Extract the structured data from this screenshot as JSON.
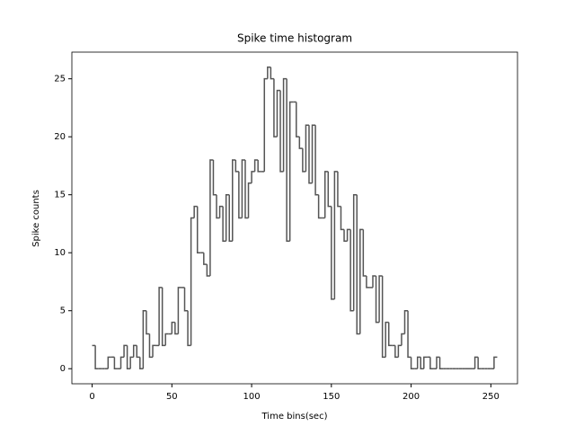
{
  "chart_data": {
    "type": "histogram",
    "histtype": "step",
    "title": "Spike time histogram",
    "x_label": "Time bins(sec)",
    "y_label": "Spike counts",
    "color": "#555555",
    "bins": [
      0,
      2,
      4,
      6,
      8,
      10,
      12,
      14,
      16,
      18,
      20,
      22,
      24,
      26,
      28,
      30,
      32,
      34,
      36,
      38,
      40,
      42,
      44,
      46,
      48,
      50,
      52,
      54,
      56,
      58,
      60,
      62,
      64,
      66,
      68,
      70,
      72,
      74,
      76,
      78,
      80,
      82,
      84,
      86,
      88,
      90,
      92,
      94,
      96,
      98,
      100,
      102,
      104,
      106,
      108,
      110,
      112,
      114,
      116,
      118,
      120,
      122,
      124,
      126,
      128,
      130,
      132,
      134,
      136,
      138,
      140,
      142,
      144,
      146,
      148,
      150,
      152,
      154,
      156,
      158,
      160,
      162,
      164,
      166,
      168,
      170,
      172,
      174,
      176,
      178,
      180,
      182,
      184,
      186,
      188,
      190,
      192,
      194,
      196,
      198,
      200,
      202,
      204,
      206,
      208,
      210,
      212,
      214,
      216,
      218,
      220,
      222,
      224,
      226,
      228,
      230,
      232,
      234,
      236,
      238,
      240,
      242,
      244,
      246,
      248,
      250,
      252,
      254
    ],
    "values": [
      2,
      0,
      0,
      0,
      0,
      1,
      1,
      0,
      0,
      1,
      2,
      0,
      1,
      2,
      1,
      0,
      5,
      3,
      1,
      2,
      2,
      7,
      2,
      3,
      3,
      4,
      3,
      7,
      7,
      5,
      2,
      13,
      14,
      10,
      10,
      9,
      8,
      18,
      15,
      13,
      14,
      11,
      15,
      11,
      18,
      17,
      13,
      18,
      13,
      16,
      17,
      18,
      17,
      17,
      25,
      26,
      25,
      20,
      24,
      17,
      25,
      11,
      23,
      23,
      20,
      19,
      17,
      21,
      16,
      21,
      15,
      13,
      13,
      17,
      14,
      6,
      17,
      14,
      12,
      11,
      12,
      5,
      15,
      3,
      12,
      8,
      7,
      7,
      8,
      4,
      8,
      1,
      4,
      2,
      2,
      1,
      2,
      3,
      5,
      1,
      0,
      0,
      1,
      0,
      1,
      1,
      0,
      0,
      1,
      0,
      0,
      0,
      0,
      0,
      0,
      0,
      0,
      0,
      0,
      0,
      1,
      0,
      0,
      0,
      0,
      0,
      1
    ],
    "xlim": [
      -12.7,
      266.7
    ],
    "ylim": [
      -1.3,
      27.3
    ],
    "xticks": [
      0,
      50,
      100,
      150,
      200,
      250
    ],
    "yticks": [
      0,
      5,
      10,
      15,
      20,
      25
    ]
  }
}
